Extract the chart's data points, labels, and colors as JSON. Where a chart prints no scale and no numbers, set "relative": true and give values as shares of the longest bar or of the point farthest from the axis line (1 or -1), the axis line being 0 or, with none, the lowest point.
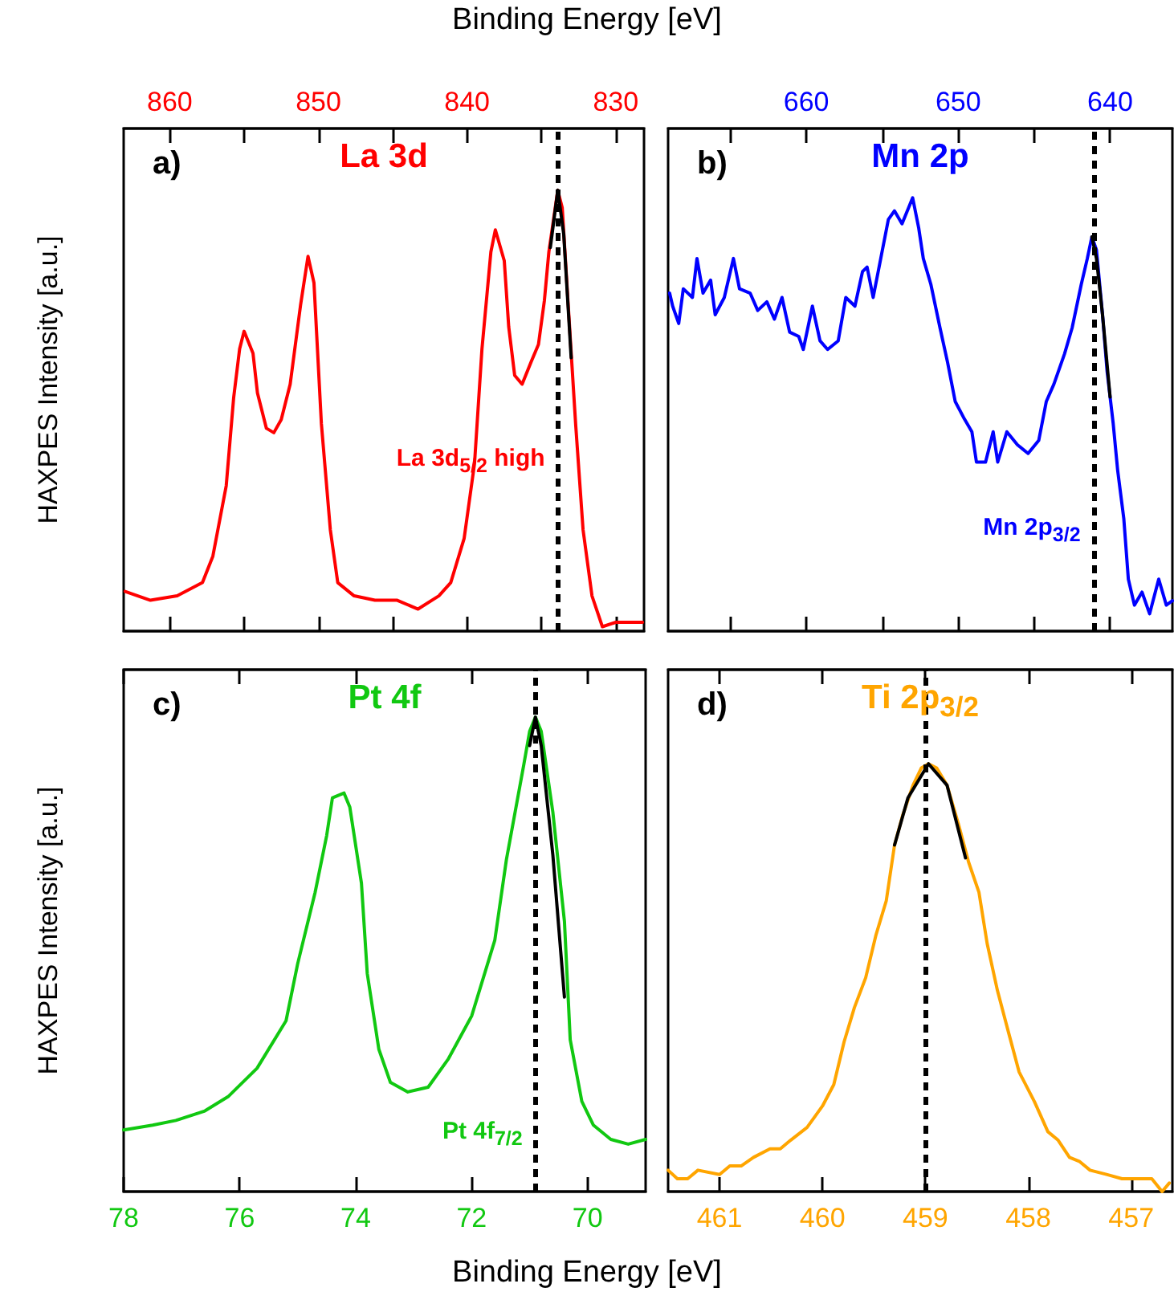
{
  "chart_data": [
    {
      "type": "line",
      "title": "La 3d",
      "xlabel": "Binding Energy [eV]",
      "ylabel": "HAXPES Intensity [a.u.]",
      "relative": true,
      "xlim": [
        863.1,
        828.1
      ],
      "xticks": [
        860,
        {
          "value": 855,
          "label": null
        },
        850,
        {
          "value": 845,
          "label": null
        },
        840,
        {
          "value": 835,
          "label": null
        },
        830
      ],
      "series": [
        {
          "color": "#ff0000",
          "x": [
            863.0,
            861.3,
            859.5,
            857.8,
            857.1,
            856.2,
            855.7,
            855.3,
            855.0,
            854.4,
            854.1,
            853.5,
            853.0,
            852.5,
            851.9,
            851.2,
            850.7,
            850.3,
            849.8,
            849.2,
            848.7,
            847.6,
            846.2,
            844.7,
            843.3,
            841.9,
            841.1,
            840.2,
            839.5,
            839.0,
            838.4,
            838.1,
            837.5,
            837.2,
            836.8,
            836.3,
            835.7,
            835.2,
            834.8,
            834.5,
            833.9,
            833.6,
            833.2,
            832.7,
            832.2,
            831.6,
            830.9,
            830.0,
            828.2
          ],
          "values": [
            0.09,
            0.07,
            0.08,
            0.11,
            0.17,
            0.33,
            0.53,
            0.64,
            0.68,
            0.63,
            0.54,
            0.46,
            0.45,
            0.48,
            0.56,
            0.74,
            0.85,
            0.79,
            0.47,
            0.23,
            0.11,
            0.08,
            0.07,
            0.07,
            0.05,
            0.08,
            0.11,
            0.21,
            0.38,
            0.64,
            0.86,
            0.91,
            0.84,
            0.69,
            0.58,
            0.56,
            0.61,
            0.65,
            0.75,
            0.86,
            1.0,
            0.96,
            0.74,
            0.47,
            0.23,
            0.08,
            0.01,
            0.02,
            0.02
          ]
        },
        {
          "color": "#000000",
          "x": [
            834.4,
            833.9,
            833.5,
            833.0
          ],
          "values": [
            0.87,
            1.0,
            0.9,
            0.62
          ]
        }
      ],
      "ref_lines": [
        {
          "axis": "x",
          "value": 833.9,
          "color": "#000000",
          "line_style": "dashed",
          "label": "La 3d$_{5/2}$ high"
        }
      ],
      "annotations": [
        "a)"
      ]
    },
    {
      "type": "line",
      "title": "Mn 2p",
      "relative": true,
      "xlim": [
        669.1,
        635.9
      ],
      "xticks": [
        {
          "value": 665,
          "label": null
        },
        660,
        {
          "value": 655,
          "label": null
        },
        650,
        {
          "value": 645,
          "label": null
        },
        640
      ],
      "series": [
        {
          "color": "#0000ff",
          "x": [
            669.0,
            668.8,
            668.4,
            668.1,
            667.5,
            667.2,
            666.8,
            666.3,
            666.0,
            665.4,
            664.8,
            664.4,
            663.7,
            663.2,
            662.6,
            662.1,
            661.6,
            661.1,
            660.5,
            660.2,
            659.6,
            659.1,
            658.6,
            657.9,
            657.4,
            656.8,
            656.3,
            656.0,
            655.6,
            655.1,
            654.6,
            654.2,
            653.7,
            653.0,
            652.6,
            652.3,
            651.8,
            651.2,
            650.7,
            650.2,
            649.6,
            649.1,
            648.8,
            648.2,
            647.7,
            647.4,
            646.8,
            646.1,
            645.4,
            644.7,
            644.2,
            643.7,
            643.0,
            642.5,
            641.9,
            641.5,
            641.2,
            640.9,
            640.5,
            640.2,
            639.8,
            639.5,
            639.1,
            638.8,
            638.4,
            637.9,
            637.4,
            636.8,
            636.3,
            635.9
          ],
          "values": [
            0.78,
            0.75,
            0.71,
            0.79,
            0.77,
            0.86,
            0.78,
            0.81,
            0.73,
            0.77,
            0.86,
            0.79,
            0.78,
            0.74,
            0.76,
            0.72,
            0.77,
            0.69,
            0.68,
            0.65,
            0.75,
            0.67,
            0.65,
            0.67,
            0.77,
            0.75,
            0.83,
            0.84,
            0.77,
            0.86,
            0.95,
            0.97,
            0.94,
            1.0,
            0.93,
            0.86,
            0.8,
            0.7,
            0.62,
            0.53,
            0.49,
            0.46,
            0.39,
            0.39,
            0.46,
            0.39,
            0.46,
            0.43,
            0.41,
            0.44,
            0.53,
            0.57,
            0.64,
            0.7,
            0.8,
            0.86,
            0.91,
            0.88,
            0.73,
            0.6,
            0.48,
            0.37,
            0.26,
            0.12,
            0.06,
            0.09,
            0.04,
            0.12,
            0.06,
            0.07
          ]
        },
        {
          "color": "#000000",
          "x": [
            641.2,
            640.9,
            640.5,
            640.0
          ],
          "values": [
            0.91,
            0.86,
            0.73,
            0.54
          ]
        }
      ],
      "ref_lines": [
        {
          "axis": "x",
          "value": 641.1,
          "color": "#000000",
          "line_style": "dashed",
          "label": "Mn 2p$_{3/2}$"
        }
      ],
      "annotations": [
        "b)"
      ]
    },
    {
      "type": "line",
      "title": "Pt 4f",
      "xlabel": "Binding Energy [eV]",
      "ylabel": "HAXPES Intensity [a.u.]",
      "relative": true,
      "xlim": [
        78,
        69
      ],
      "xticks": [
        78,
        76,
        74,
        72,
        70
      ],
      "series": [
        {
          "color": "#11c811",
          "x": [
            78.0,
            77.5,
            77.1,
            76.6,
            76.2,
            75.7,
            75.2,
            75.0,
            74.7,
            74.5,
            74.4,
            74.2,
            74.1,
            73.9,
            73.8,
            73.6,
            73.4,
            73.1,
            72.75,
            72.4,
            72.0,
            71.6,
            71.4,
            71.1,
            71.0,
            70.9,
            70.8,
            70.6,
            70.4,
            70.3,
            70.1,
            69.9,
            69.6,
            69.3,
            69.0
          ],
          "values": [
            0.13,
            0.14,
            0.15,
            0.17,
            0.2,
            0.26,
            0.36,
            0.48,
            0.63,
            0.75,
            0.83,
            0.84,
            0.81,
            0.65,
            0.46,
            0.3,
            0.23,
            0.21,
            0.22,
            0.28,
            0.37,
            0.53,
            0.7,
            0.9,
            0.97,
            1.0,
            0.97,
            0.8,
            0.57,
            0.32,
            0.19,
            0.14,
            0.11,
            0.1,
            0.11
          ]
        },
        {
          "color": "#000000",
          "x": [
            71.0,
            70.9,
            70.8,
            70.6,
            70.4
          ],
          "values": [
            0.94,
            1.0,
            0.94,
            0.71,
            0.41
          ]
        }
      ],
      "ref_lines": [
        {
          "axis": "x",
          "value": 70.9,
          "color": "#000000",
          "line_style": "dashed",
          "label": "Pt 4f$_{7/2}$"
        }
      ],
      "annotations": [
        "c)"
      ]
    },
    {
      "type": "line",
      "title": "Ti 2p$_{3/2}$",
      "relative": true,
      "xlim": [
        461.5,
        456.6
      ],
      "xticks": [
        461,
        460,
        459,
        458,
        457
      ],
      "series": [
        {
          "color": "#ffa500",
          "x": [
            461.5,
            461.41,
            461.31,
            461.21,
            461.0,
            460.9,
            460.79,
            460.67,
            460.51,
            460.41,
            460.31,
            460.15,
            460.0,
            459.89,
            459.79,
            459.69,
            459.58,
            459.48,
            459.38,
            459.3,
            459.22,
            459.12,
            459.04,
            458.97,
            458.89,
            458.79,
            458.68,
            458.58,
            458.48,
            458.4,
            458.3,
            458.19,
            458.09,
            457.94,
            457.81,
            457.71,
            457.6,
            457.5,
            457.4,
            457.24,
            457.09,
            456.93,
            456.8,
            456.7,
            456.63
          ],
          "values": [
            0.05,
            0.03,
            0.03,
            0.05,
            0.04,
            0.06,
            0.06,
            0.08,
            0.1,
            0.1,
            0.12,
            0.15,
            0.2,
            0.25,
            0.35,
            0.43,
            0.5,
            0.6,
            0.68,
            0.81,
            0.88,
            0.95,
            0.99,
            1.0,
            0.99,
            0.95,
            0.86,
            0.77,
            0.7,
            0.58,
            0.47,
            0.37,
            0.28,
            0.21,
            0.14,
            0.12,
            0.08,
            0.07,
            0.05,
            0.04,
            0.03,
            0.03,
            0.03,
            0.0,
            0.02
          ]
        },
        {
          "color": "#000000",
          "x": [
            459.3,
            459.17,
            458.97,
            458.79,
            458.61
          ],
          "values": [
            0.81,
            0.92,
            1.0,
            0.95,
            0.78
          ]
        }
      ],
      "ref_lines": [
        {
          "axis": "x",
          "value": 459.0,
          "color": "#000000",
          "line_style": "dashed"
        }
      ],
      "annotations": [
        "d)"
      ]
    }
  ]
}
